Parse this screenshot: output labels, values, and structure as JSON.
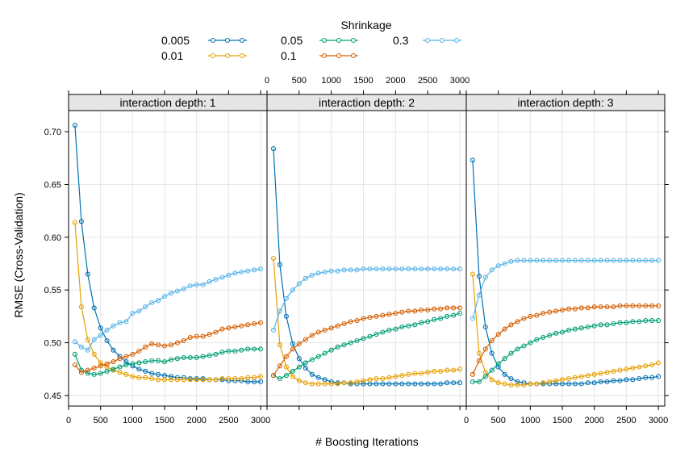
{
  "chart_data": {
    "type": "line",
    "xlabel": "# Boosting Iterations",
    "ylabel": "RMSE (Cross-Validation)",
    "xlim": [
      0,
      3100
    ],
    "ylim": [
      0.44,
      0.72
    ],
    "xticks": [
      0,
      500,
      1000,
      1500,
      2000,
      2500,
      3000
    ],
    "yticks": [
      0.45,
      0.5,
      0.55,
      0.6,
      0.65,
      0.7
    ],
    "grid": true,
    "legend": {
      "title": "Shrinkage",
      "placement": "top",
      "entries": [
        "0.005",
        "0.01",
        "0.05",
        "0.1",
        "0.3"
      ]
    },
    "x": [
      100,
      200,
      300,
      400,
      500,
      600,
      700,
      800,
      900,
      1000,
      1100,
      1200,
      1300,
      1400,
      1500,
      1600,
      1700,
      1800,
      1900,
      2000,
      2100,
      2200,
      2300,
      2400,
      2500,
      2600,
      2700,
      2800,
      2900,
      3000
    ],
    "series_colors": {
      "0.005": "#0072B2",
      "0.01": "#E69F00",
      "0.05": "#009E73",
      "0.1": "#D55E00",
      "0.3": "#56B4E9"
    },
    "panels": [
      {
        "label": "interaction depth: 1",
        "series": [
          {
            "name": "0.005",
            "values": [
              0.706,
              0.615,
              0.565,
              0.533,
              0.514,
              0.502,
              0.493,
              0.487,
              0.482,
              0.478,
              0.475,
              0.473,
              0.471,
              0.47,
              0.469,
              0.468,
              0.467,
              0.467,
              0.466,
              0.466,
              0.466,
              0.465,
              0.465,
              0.465,
              0.464,
              0.464,
              0.464,
              0.463,
              0.463,
              0.463
            ]
          },
          {
            "name": "0.01",
            "values": [
              0.614,
              0.534,
              0.503,
              0.489,
              0.481,
              0.477,
              0.474,
              0.472,
              0.47,
              0.468,
              0.467,
              0.467,
              0.466,
              0.465,
              0.465,
              0.465,
              0.465,
              0.465,
              0.465,
              0.465,
              0.465,
              0.465,
              0.465,
              0.466,
              0.466,
              0.466,
              0.466,
              0.467,
              0.467,
              0.468
            ]
          },
          {
            "name": "0.05",
            "values": [
              0.489,
              0.474,
              0.471,
              0.47,
              0.471,
              0.473,
              0.475,
              0.477,
              0.479,
              0.48,
              0.481,
              0.482,
              0.483,
              0.483,
              0.482,
              0.484,
              0.485,
              0.486,
              0.486,
              0.486,
              0.487,
              0.488,
              0.489,
              0.491,
              0.492,
              0.492,
              0.493,
              0.494,
              0.494,
              0.494
            ]
          },
          {
            "name": "0.1",
            "values": [
              0.479,
              0.472,
              0.474,
              0.476,
              0.478,
              0.48,
              0.482,
              0.485,
              0.487,
              0.489,
              0.492,
              0.496,
              0.499,
              0.498,
              0.497,
              0.498,
              0.5,
              0.502,
              0.505,
              0.506,
              0.506,
              0.508,
              0.51,
              0.513,
              0.514,
              0.515,
              0.516,
              0.517,
              0.518,
              0.519
            ]
          },
          {
            "name": "0.3",
            "values": [
              0.501,
              0.496,
              0.493,
              0.503,
              0.507,
              0.512,
              0.516,
              0.519,
              0.52,
              0.528,
              0.53,
              0.534,
              0.538,
              0.54,
              0.544,
              0.547,
              0.549,
              0.551,
              0.554,
              0.555,
              0.555,
              0.558,
              0.56,
              0.562,
              0.564,
              0.566,
              0.567,
              0.568,
              0.569,
              0.57
            ]
          }
        ]
      },
      {
        "label": "interaction depth: 2",
        "series": [
          {
            "name": "0.005",
            "values": [
              0.684,
              0.574,
              0.525,
              0.499,
              0.485,
              0.476,
              0.47,
              0.467,
              0.465,
              0.463,
              0.462,
              0.462,
              0.461,
              0.461,
              0.461,
              0.461,
              0.461,
              0.461,
              0.461,
              0.461,
              0.461,
              0.461,
              0.461,
              0.461,
              0.461,
              0.461,
              0.461,
              0.462,
              0.462,
              0.462
            ]
          },
          {
            "name": "0.01",
            "values": [
              0.58,
              0.498,
              0.477,
              0.468,
              0.464,
              0.462,
              0.461,
              0.461,
              0.461,
              0.461,
              0.461,
              0.462,
              0.462,
              0.463,
              0.464,
              0.465,
              0.466,
              0.466,
              0.467,
              0.468,
              0.469,
              0.47,
              0.471,
              0.471,
              0.472,
              0.473,
              0.473,
              0.474,
              0.474,
              0.475
            ]
          },
          {
            "name": "0.05",
            "values": [
              0.469,
              0.466,
              0.469,
              0.473,
              0.477,
              0.481,
              0.484,
              0.487,
              0.49,
              0.493,
              0.496,
              0.498,
              0.5,
              0.502,
              0.504,
              0.506,
              0.508,
              0.51,
              0.512,
              0.513,
              0.515,
              0.516,
              0.517,
              0.519,
              0.52,
              0.522,
              0.523,
              0.525,
              0.526,
              0.528
            ]
          },
          {
            "name": "0.1",
            "values": [
              0.469,
              0.478,
              0.487,
              0.494,
              0.499,
              0.503,
              0.507,
              0.51,
              0.512,
              0.514,
              0.516,
              0.518,
              0.52,
              0.521,
              0.523,
              0.524,
              0.525,
              0.526,
              0.527,
              0.528,
              0.529,
              0.53,
              0.53,
              0.531,
              0.531,
              0.532,
              0.532,
              0.533,
              0.533,
              0.533
            ]
          },
          {
            "name": "0.3",
            "values": [
              0.512,
              0.53,
              0.542,
              0.55,
              0.556,
              0.561,
              0.564,
              0.566,
              0.567,
              0.568,
              0.568,
              0.569,
              0.569,
              0.569,
              0.57,
              0.57,
              0.57,
              0.57,
              0.57,
              0.57,
              0.57,
              0.57,
              0.57,
              0.57,
              0.57,
              0.57,
              0.57,
              0.57,
              0.57,
              0.57
            ]
          }
        ]
      },
      {
        "label": "interaction depth: 3",
        "series": [
          {
            "name": "0.005",
            "values": [
              0.673,
              0.563,
              0.515,
              0.49,
              0.477,
              0.47,
              0.466,
              0.463,
              0.462,
              0.461,
              0.461,
              0.461,
              0.461,
              0.461,
              0.461,
              0.461,
              0.461,
              0.461,
              0.462,
              0.462,
              0.463,
              0.463,
              0.464,
              0.464,
              0.465,
              0.465,
              0.466,
              0.467,
              0.467,
              0.468
            ]
          },
          {
            "name": "0.01",
            "values": [
              0.565,
              0.49,
              0.472,
              0.465,
              0.462,
              0.461,
              0.46,
              0.46,
              0.46,
              0.461,
              0.461,
              0.462,
              0.463,
              0.464,
              0.465,
              0.466,
              0.467,
              0.468,
              0.469,
              0.47,
              0.471,
              0.472,
              0.473,
              0.474,
              0.475,
              0.476,
              0.477,
              0.478,
              0.479,
              0.481
            ]
          },
          {
            "name": "0.05",
            "values": [
              0.463,
              0.463,
              0.468,
              0.474,
              0.48,
              0.485,
              0.49,
              0.494,
              0.497,
              0.5,
              0.503,
              0.505,
              0.507,
              0.509,
              0.51,
              0.512,
              0.513,
              0.514,
              0.515,
              0.516,
              0.517,
              0.517,
              0.518,
              0.519,
              0.519,
              0.52,
              0.52,
              0.521,
              0.521,
              0.521
            ]
          },
          {
            "name": "0.1",
            "values": [
              0.47,
              0.483,
              0.494,
              0.502,
              0.508,
              0.513,
              0.517,
              0.52,
              0.523,
              0.525,
              0.526,
              0.528,
              0.529,
              0.53,
              0.531,
              0.532,
              0.532,
              0.533,
              0.533,
              0.534,
              0.534,
              0.534,
              0.534,
              0.535,
              0.535,
              0.535,
              0.535,
              0.535,
              0.535,
              0.535
            ]
          },
          {
            "name": "0.3",
            "values": [
              0.523,
              0.545,
              0.562,
              0.569,
              0.573,
              0.575,
              0.577,
              0.578,
              0.578,
              0.578,
              0.578,
              0.578,
              0.578,
              0.578,
              0.578,
              0.578,
              0.578,
              0.578,
              0.578,
              0.578,
              0.578,
              0.578,
              0.578,
              0.578,
              0.578,
              0.578,
              0.578,
              0.578,
              0.578,
              0.578
            ]
          }
        ]
      }
    ]
  }
}
